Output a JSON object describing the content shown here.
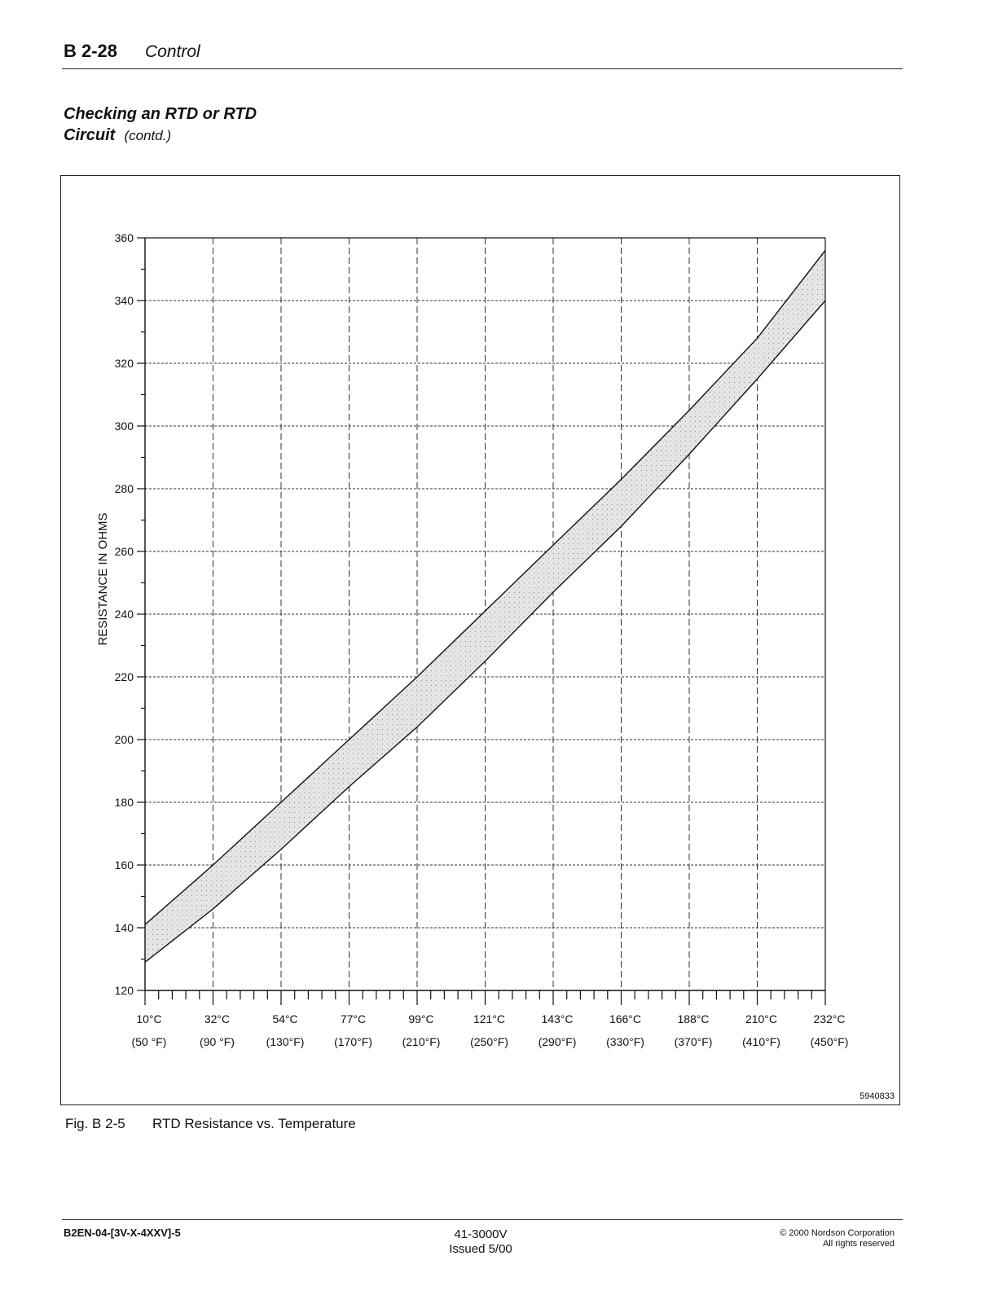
{
  "header": {
    "section": "B 2-28",
    "topic": "Control"
  },
  "section_title": {
    "line1": "Checking an RTD or RTD",
    "line2": "Circuit",
    "contd": "(contd.)"
  },
  "figure": {
    "id": "5940833",
    "caption_label": "Fig. B 2-5",
    "caption_text": "RTD Resistance vs. Temperature"
  },
  "chart_data": {
    "type": "area",
    "title": "",
    "xlabel": "",
    "ylabel": "RESISTANCE IN OHMS",
    "x_unit": "°F",
    "xlim": [
      50,
      450
    ],
    "ylim": [
      120,
      360
    ],
    "y_ticks": [
      120,
      140,
      160,
      180,
      200,
      220,
      240,
      260,
      280,
      300,
      320,
      340,
      360
    ],
    "x_tick_labels": [
      {
        "value": 50,
        "c": "10°C",
        "f": "(50 °F)"
      },
      {
        "value": 90,
        "c": "32°C",
        "f": "(90 °F)"
      },
      {
        "value": 130,
        "c": "54°C",
        "f": "(130°F)"
      },
      {
        "value": 170,
        "c": "77°C",
        "f": "(170°F)"
      },
      {
        "value": 210,
        "c": "99°C",
        "f": "(210°F)"
      },
      {
        "value": 250,
        "c": "121°C",
        "f": "(250°F)"
      },
      {
        "value": 290,
        "c": "143°C",
        "f": "(290°F)"
      },
      {
        "value": 330,
        "c": "166°C",
        "f": "(330°F)"
      },
      {
        "value": 370,
        "c": "188°C",
        "f": "(370°F)"
      },
      {
        "value": 410,
        "c": "210°C",
        "f": "(410°F)"
      },
      {
        "value": 450,
        "c": "232°C",
        "f": "(450°F)"
      }
    ],
    "grid": true,
    "series": [
      {
        "x": [
          50,
          90,
          130,
          170,
          210,
          250,
          290,
          330,
          370,
          410,
          450
        ],
        "values": [
          141,
          160,
          180,
          200,
          220,
          241,
          262,
          283,
          305,
          328,
          356
        ]
      },
      {
        "x": [
          50,
          90,
          130,
          170,
          210,
          250,
          290,
          330,
          370,
          410,
          450
        ],
        "values": [
          129,
          146,
          165,
          185,
          204,
          225,
          247,
          268,
          291,
          315,
          340
        ]
      }
    ],
    "band_fill": "#d8d8d8"
  },
  "footer": {
    "doc_code": "B2EN-04-[3V-X-4XXV]-5",
    "part_no": "41-3000V",
    "issued": "Issued 5/00",
    "copyright": "© 2000 Nordson Corporation",
    "rights": "All rights reserved"
  }
}
